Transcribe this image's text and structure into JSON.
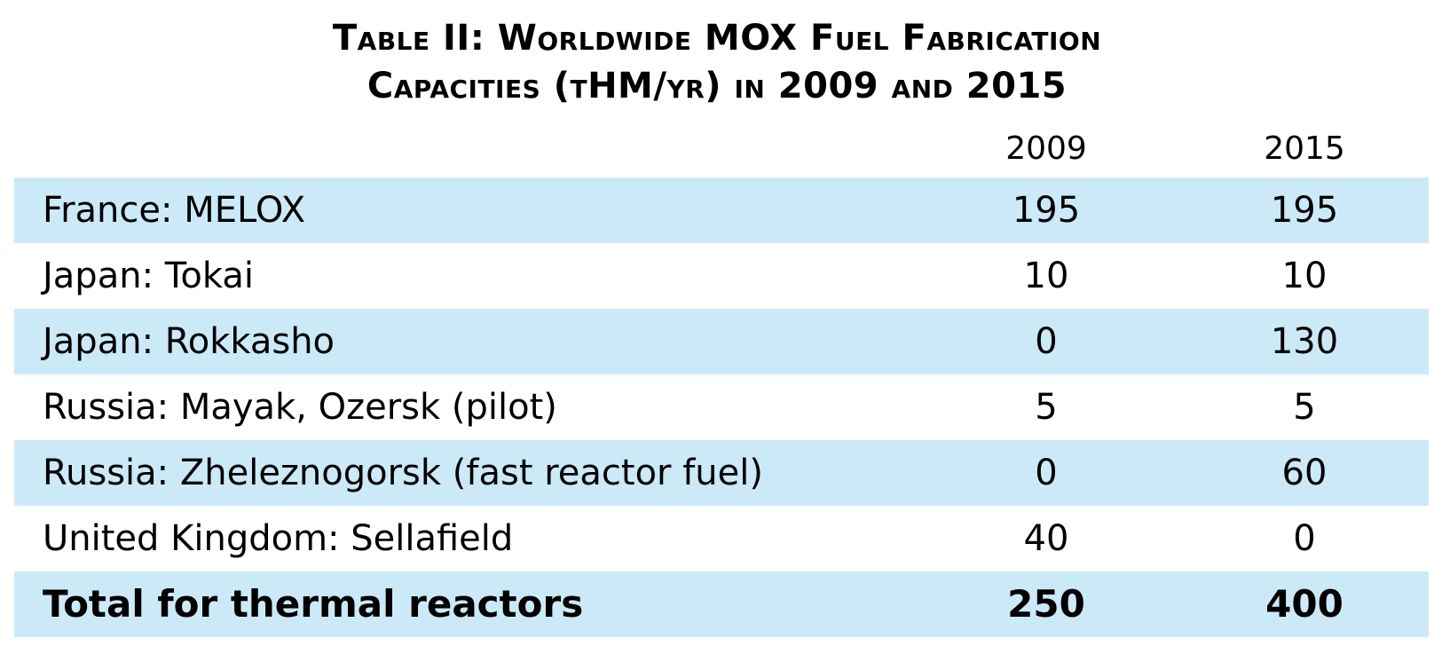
{
  "title": {
    "line1": "Table II: Worldwide MOX Fuel Fabrication",
    "line2": "Capacities (tHM/yr) in 2009 and 2015"
  },
  "columns": {
    "year1": "2009",
    "year2": "2015"
  },
  "rows": [
    {
      "label": "France: MELOX",
      "v2009": "195",
      "v2015": "195"
    },
    {
      "label": "Japan: Tokai",
      "v2009": "10",
      "v2015": "10"
    },
    {
      "label": "Japan: Rokkasho",
      "v2009": "0",
      "v2015": "130"
    },
    {
      "label": "Russia: Mayak, Ozersk (pilot)",
      "v2009": "5",
      "v2015": "5"
    },
    {
      "label": "Russia: Zheleznogorsk (fast reactor fuel)",
      "v2009": "0",
      "v2015": "60"
    },
    {
      "label": "United Kingdom: Sellafield",
      "v2009": "40",
      "v2015": "0"
    }
  ],
  "total": {
    "label": "Total for thermal reactors",
    "v2009": "250",
    "v2015": "400"
  },
  "colors": {
    "row_shade": "#cce9f8",
    "text": "#000000"
  }
}
